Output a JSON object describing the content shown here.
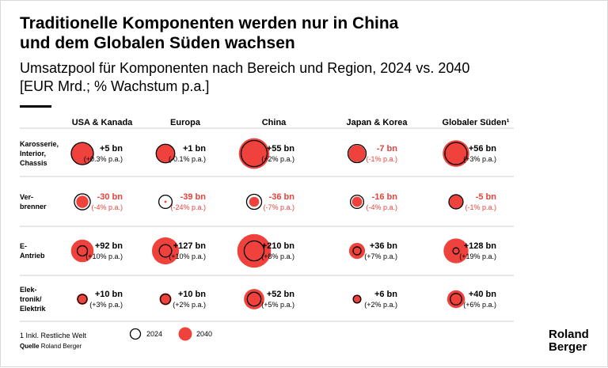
{
  "header": {
    "title_line1": "Traditionelle Komponenten werden nur in China",
    "title_line2": "und dem Globalen Süden wachsen",
    "subtitle_line1": "Umsatzpool für Komponenten nach Bereich und Region, 2024 vs. 2040",
    "subtitle_line2": "[EUR Mrd.; % Wachstum p.a.]"
  },
  "colors": {
    "grow": "#000000",
    "decline": "#e8423b",
    "fill2040": "#f0423c",
    "ring2024": "#000000",
    "rule": "#cfcfcf"
  },
  "chart_data": {
    "type": "bubble",
    "title": "Traditionelle Komponenten werden nur in China und dem Globalen Süden wachsen",
    "subtitle": "Umsatzpool für Komponenten nach Bereich und Region, 2024 vs. 2040",
    "units": "[EUR Mrd.; % Wachstum p.a.]",
    "regions": [
      "USA & Kanada",
      "Europa",
      "China",
      "Japan & Korea",
      "Globaler Süden¹"
    ],
    "segments": [
      {
        "label": [
          "Karosserie,",
          "Interior,",
          "Chassis"
        ],
        "cells": [
          {
            "change": "+5 bn",
            "cagr": "(+0.3% p.a.)",
            "s2024": 1.0,
            "s2040": 1.02,
            "decline": false
          },
          {
            "change": "+1 bn",
            "cagr": "(-0.1% p.a.)",
            "s2024": 0.84,
            "s2040": 0.84,
            "decline": false
          },
          {
            "change": "+55 bn",
            "cagr": "(+2% p.a.)",
            "s2024": 1.18,
            "s2040": 1.38,
            "decline": false
          },
          {
            "change": "-7 bn",
            "cagr": "(-1% p.a.)",
            "s2024": 0.82,
            "s2040": 0.76,
            "decline": true
          },
          {
            "change": "+56 bn",
            "cagr": "(+3% p.a.)",
            "s2024": 1.0,
            "s2040": 1.2,
            "decline": false
          }
        ]
      },
      {
        "label": [
          "Ver-",
          "brenner"
        ],
        "cells": [
          {
            "change": "-30 bn",
            "cagr": "(-4% p.a.)",
            "s2024": 0.72,
            "s2040": 0.55,
            "decline": true
          },
          {
            "change": "-39 bn",
            "cagr": "(-24% p.a.)",
            "s2024": 0.6,
            "s2040": 0.1,
            "decline": true
          },
          {
            "change": "-36 bn",
            "cagr": "(-7% p.a.)",
            "s2024": 0.68,
            "s2040": 0.45,
            "decline": true
          },
          {
            "change": "-16 bn",
            "cagr": "(-4% p.a.)",
            "s2024": 0.6,
            "s2040": 0.46,
            "decline": true
          },
          {
            "change": "-5 bn",
            "cagr": "(-1% p.a.)",
            "s2024": 0.64,
            "s2040": 0.6,
            "decline": true
          }
        ]
      },
      {
        "label": [
          "E-",
          "Antrieb"
        ],
        "cells": [
          {
            "change": "+92 bn",
            "cagr": "(+10% p.a.)",
            "s2024": 0.46,
            "s2040": 1.02,
            "decline": false
          },
          {
            "change": "+127 bn",
            "cagr": "(+10% p.a.)",
            "s2024": 0.56,
            "s2040": 1.22,
            "decline": false
          },
          {
            "change": "+210 bn",
            "cagr": "(+8% p.a.)",
            "s2024": 0.9,
            "s2040": 1.52,
            "decline": false
          },
          {
            "change": "+36 bn",
            "cagr": "(+7% p.a.)",
            "s2024": 0.36,
            "s2040": 0.72,
            "decline": false
          },
          {
            "change": "+128 bn",
            "cagr": "(+19% p.a.)",
            "s2024": 0.28,
            "s2040": 1.12,
            "decline": false
          }
        ]
      },
      {
        "label": [
          "Elek-",
          "tronik/",
          "Elektrik"
        ],
        "cells": [
          {
            "change": "+10 bn",
            "cagr": "(+3% p.a.)",
            "s2024": 0.42,
            "s2040": 0.5,
            "decline": false
          },
          {
            "change": "+10 bn",
            "cagr": "(+2% p.a.)",
            "s2024": 0.46,
            "s2040": 0.54,
            "decline": false
          },
          {
            "change": "+52 bn",
            "cagr": "(+5% p.a.)",
            "s2024": 0.62,
            "s2040": 0.92,
            "decline": false
          },
          {
            "change": "+6 bn",
            "cagr": "(+2% p.a.)",
            "s2024": 0.34,
            "s2040": 0.4,
            "decline": false
          },
          {
            "change": "+40 bn",
            "cagr": "(+6% p.a.)",
            "s2024": 0.52,
            "s2040": 0.8,
            "decline": false
          }
        ]
      }
    ],
    "legend": {
      "item_2024": "2024",
      "item_2040": "2040"
    }
  },
  "footer": {
    "footnote": "1 Inkl. Restliche Welt",
    "source_label": "Quelle",
    "source_value": "Roland Berger"
  },
  "brand": {
    "line1": "Roland",
    "line2": "Berger"
  }
}
